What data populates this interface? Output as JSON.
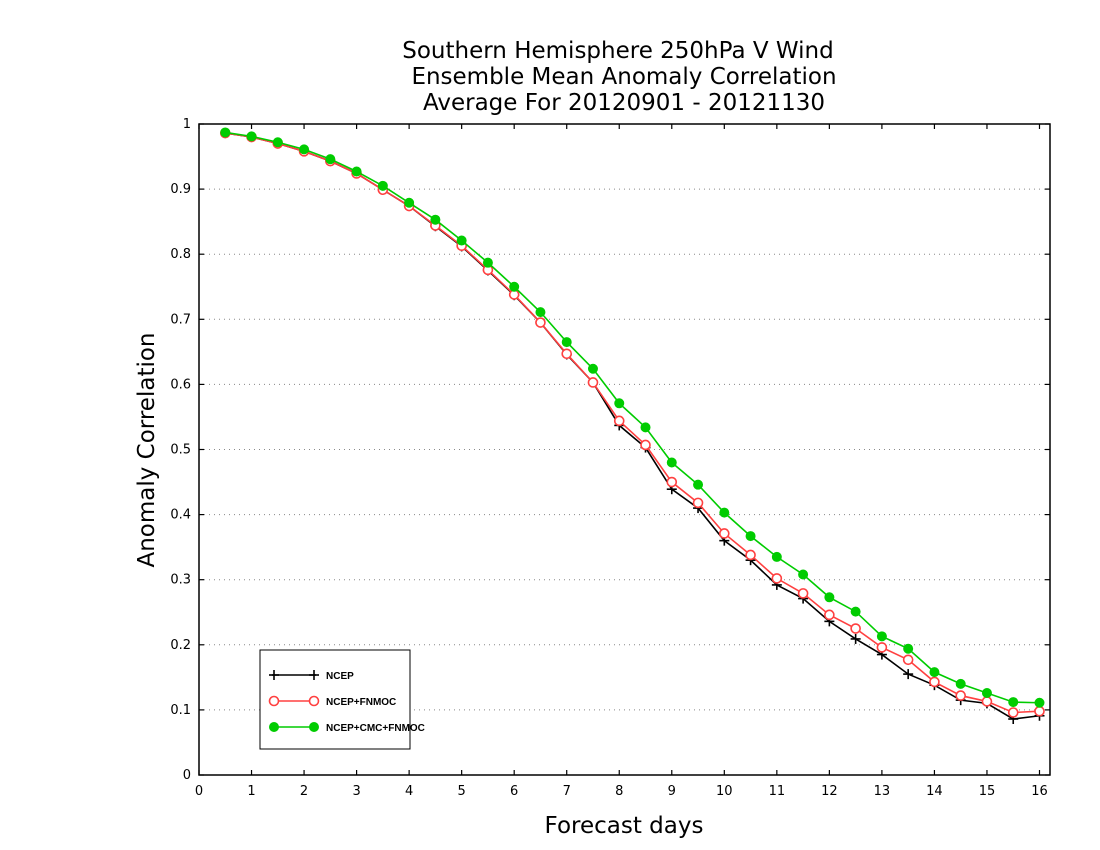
{
  "chart_data": {
    "type": "line",
    "title": [
      "Southern Hemisphere 250hPa V Wind",
      "Ensemble Mean Anomaly Correlation",
      "Average For 20120901 - 20121130"
    ],
    "xlabel": "Forecast days",
    "ylabel": "Anomaly Correlation",
    "xlim": [
      0,
      16.2
    ],
    "ylim": [
      0,
      1
    ],
    "xticks": [
      "0",
      "1",
      "2",
      "3",
      "4",
      "5",
      "6",
      "7",
      "8",
      "9",
      "10",
      "11",
      "12",
      "13",
      "14",
      "15",
      "16"
    ],
    "yticks": [
      "0",
      "0.1",
      "0.2",
      "0.3",
      "0.4",
      "0.5",
      "0.6",
      "0.7",
      "0.8",
      "0.9",
      "1"
    ],
    "grid": "horizontal dotted",
    "legend_position": "bottom-left",
    "x": [
      0.5,
      1,
      1.5,
      2,
      2.5,
      3,
      3.5,
      4,
      4.5,
      5,
      5.5,
      6,
      6.5,
      7,
      7.5,
      8,
      8.5,
      9,
      9.5,
      10,
      10.5,
      11,
      11.5,
      12,
      12.5,
      13,
      13.5,
      14,
      14.5,
      15,
      15.5,
      16
    ],
    "series": [
      {
        "name": "NCEP",
        "color": "#000000",
        "marker": "plus",
        "values": [
          0.986,
          0.98,
          0.97,
          0.958,
          0.943,
          0.924,
          0.899,
          0.874,
          0.843,
          0.812,
          0.775,
          0.737,
          0.695,
          0.646,
          0.603,
          0.537,
          0.503,
          0.439,
          0.41,
          0.36,
          0.33,
          0.292,
          0.271,
          0.236,
          0.209,
          0.185,
          0.155,
          0.138,
          0.115,
          0.11,
          0.086,
          0.091
        ]
      },
      {
        "name": "NCEP+FNMOC",
        "color": "#ff4040",
        "marker": "open-circle",
        "values": [
          0.986,
          0.98,
          0.97,
          0.958,
          0.943,
          0.924,
          0.899,
          0.874,
          0.844,
          0.813,
          0.776,
          0.738,
          0.695,
          0.647,
          0.603,
          0.544,
          0.507,
          0.45,
          0.418,
          0.371,
          0.338,
          0.302,
          0.279,
          0.246,
          0.225,
          0.196,
          0.177,
          0.143,
          0.122,
          0.113,
          0.096,
          0.098
        ]
      },
      {
        "name": "NCEP+CMC+FNMOC",
        "color": "#00cc00",
        "marker": "filled-circle",
        "values": [
          0.987,
          0.981,
          0.972,
          0.961,
          0.946,
          0.927,
          0.905,
          0.879,
          0.853,
          0.821,
          0.787,
          0.75,
          0.711,
          0.665,
          0.624,
          0.571,
          0.534,
          0.48,
          0.446,
          0.403,
          0.367,
          0.335,
          0.308,
          0.273,
          0.251,
          0.213,
          0.194,
          0.158,
          0.14,
          0.126,
          0.112,
          0.111
        ]
      }
    ]
  }
}
